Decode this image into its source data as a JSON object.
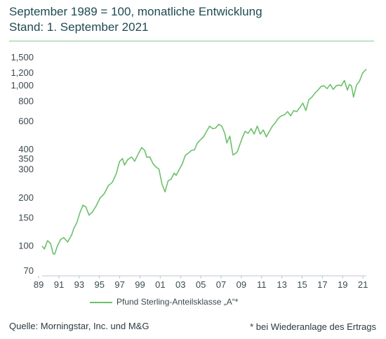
{
  "header": {
    "line1": "September 1989 = 100, monatliche Entwicklung",
    "line2": "Stand: 1. September 2021"
  },
  "footer": {
    "source": "Quelle: Morningstar, Inc. und M&G",
    "footnote": "*  bei Wiederanlage des Ertrags"
  },
  "colors": {
    "series": "#6cc06c",
    "rule": "#8cc98c",
    "text": "#1f4a52"
  },
  "chart_data": {
    "type": "line",
    "title": "",
    "y_scale": "log",
    "ylim": [
      70,
      1500
    ],
    "xlim": [
      1989.67,
      2021.67
    ],
    "grid": false,
    "legend_position": "bottom",
    "y_ticks": [
      70,
      100,
      150,
      200,
      300,
      350,
      400,
      600,
      800,
      1000,
      1200,
      1500
    ],
    "y_tick_labels": [
      "70",
      "100",
      "150",
      "200",
      "300",
      "350",
      "400",
      "600",
      "800",
      "1,000",
      "1,200",
      "1,500"
    ],
    "x_ticks": [
      1989,
      1991,
      1993,
      1995,
      1997,
      1999,
      2001,
      2003,
      2005,
      2007,
      2009,
      2011,
      2013,
      2015,
      2017,
      2019,
      2021
    ],
    "x_tick_labels": [
      "89",
      "91",
      "93",
      "95",
      "97",
      "99",
      "01",
      "03",
      "05",
      "07",
      "09",
      "11",
      "13",
      "15",
      "17",
      "19",
      "21"
    ],
    "series": [
      {
        "name": "Pfund Sterling-Anteilsklasse „A“*",
        "x": [
          1989.67,
          1989.9,
          1990.2,
          1990.5,
          1990.75,
          1990.9,
          1991.2,
          1991.5,
          1991.8,
          1992.2,
          1992.6,
          1992.8,
          1993.1,
          1993.4,
          1993.7,
          1994.0,
          1994.3,
          1994.6,
          1995.0,
          1995.4,
          1995.8,
          1996.2,
          1996.6,
          1997.0,
          1997.3,
          1997.6,
          1997.8,
          1998.1,
          1998.5,
          1998.8,
          1999.2,
          1999.5,
          1999.8,
          2000.0,
          2000.3,
          2000.6,
          2000.9,
          2001.2,
          2001.5,
          2001.8,
          2002.1,
          2002.4,
          2002.7,
          2002.9,
          2003.2,
          2003.5,
          2003.8,
          2004.1,
          2004.4,
          2004.7,
          2005.0,
          2005.3,
          2005.6,
          2005.9,
          2006.2,
          2006.5,
          2006.8,
          2007.1,
          2007.4,
          2007.7,
          2007.9,
          2008.2,
          2008.5,
          2008.8,
          2008.95,
          2009.1,
          2009.4,
          2009.7,
          2010.0,
          2010.3,
          2010.6,
          2010.9,
          2011.2,
          2011.5,
          2011.8,
          2012.1,
          2012.4,
          2012.7,
          2013.0,
          2013.3,
          2013.6,
          2013.9,
          2014.2,
          2014.5,
          2014.8,
          2015.1,
          2015.4,
          2015.7,
          2016.0,
          2016.3,
          2016.6,
          2016.9,
          2017.2,
          2017.5,
          2017.8,
          2018.1,
          2018.4,
          2018.7,
          2018.95,
          2019.2,
          2019.5,
          2019.8,
          2020.0,
          2020.2,
          2020.4,
          2020.7,
          2021.0,
          2021.3,
          2021.67
        ],
        "values": [
          100,
          96,
          108,
          104,
          90,
          89,
          101,
          110,
          113,
          106,
          118,
          129,
          140,
          162,
          180,
          175,
          156,
          162,
          178,
          200,
          212,
          238,
          250,
          284,
          336,
          352,
          320,
          345,
          360,
          338,
          380,
          412,
          395,
          358,
          360,
          328,
          312,
          302,
          244,
          218,
          255,
          262,
          285,
          276,
          300,
          325,
          368,
          380,
          395,
          398,
          440,
          460,
          480,
          520,
          560,
          540,
          545,
          575,
          560,
          505,
          440,
          485,
          370,
          380,
          390,
          415,
          470,
          520,
          505,
          540,
          500,
          560,
          500,
          530,
          480,
          520,
          560,
          590,
          630,
          650,
          660,
          690,
          650,
          700,
          690,
          730,
          780,
          700,
          820,
          850,
          900,
          940,
          990,
          1000,
          960,
          1020,
          950,
          1000,
          1010,
          1000,
          1080,
          940,
          1020,
          1000,
          850,
          1010,
          1070,
          1200,
          1270
        ]
      }
    ]
  }
}
